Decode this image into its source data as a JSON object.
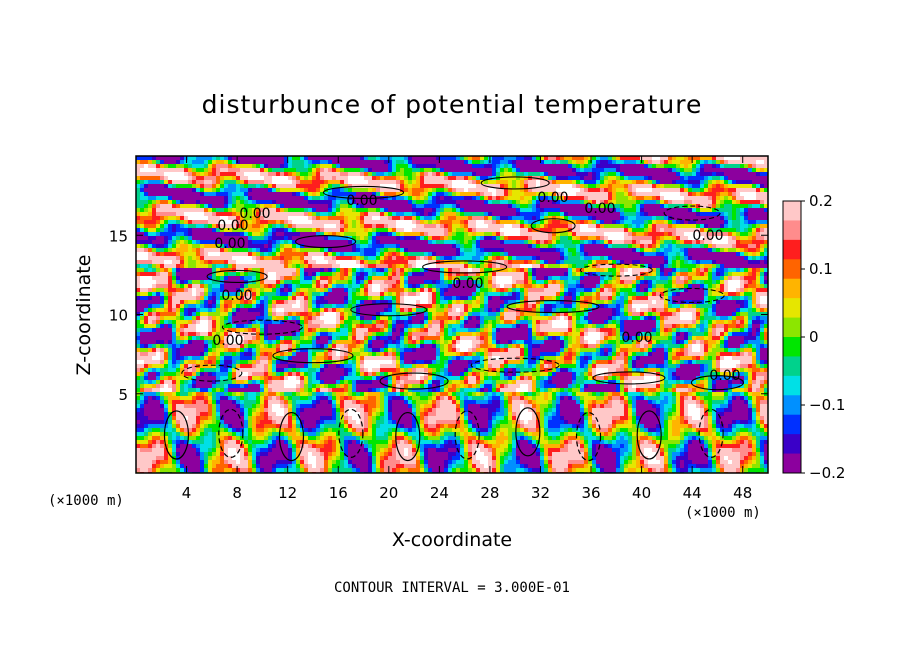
{
  "chart_data": {
    "type": "heatmap",
    "title": "disturbunce of potential temperature",
    "xlabel": "X-coordinate",
    "ylabel": "Z-coordinate",
    "x_unit": "(×1000 m)",
    "y_unit": "(×1000 m)",
    "xlim": [
      0,
      50
    ],
    "ylim": [
      0,
      20
    ],
    "x_ticks": [
      4,
      8,
      12,
      16,
      20,
      24,
      28,
      32,
      36,
      40,
      44,
      48
    ],
    "y_ticks": [
      5,
      10,
      15
    ],
    "colorbar": {
      "range": [
        -0.2,
        0.2
      ],
      "ticks": [
        "0.2",
        "0.1",
        "0",
        "−0.1",
        "−0.2"
      ],
      "colors": [
        "#8c009e",
        "#3a00c8",
        "#0030ff",
        "#0090ff",
        "#00e0e6",
        "#00d28c",
        "#00e600",
        "#8ce600",
        "#e6e600",
        "#ffb400",
        "#ff6400",
        "#ff1e1e",
        "#ff8c8c",
        "#ffc8c8"
      ]
    },
    "contour_labels": [
      "0.00",
      "0.00",
      "0.00",
      "0.00",
      "0.00",
      "0.00",
      "0.00",
      "0.00",
      "0.00",
      "0.00",
      "0.00",
      "0.00"
    ],
    "contour_interval_text": "CONTOUR INTERVAL = 3.000E-01",
    "grid": false
  }
}
